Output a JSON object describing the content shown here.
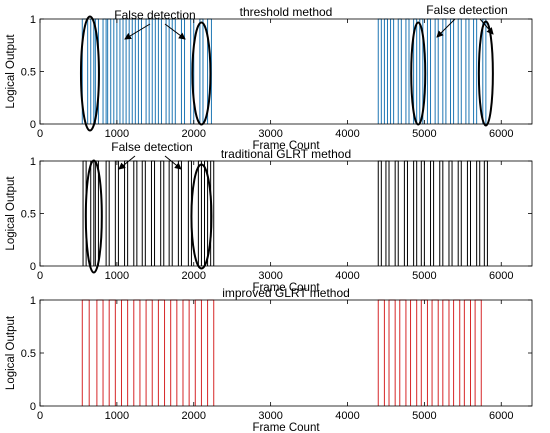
{
  "chart_data": [
    {
      "type": "line",
      "title": "threshold method",
      "xlabel": "Frame Count",
      "ylabel": "Logical Output",
      "xlim": [
        0,
        6400
      ],
      "ylim": [
        0,
        1
      ],
      "xticks": [
        0,
        1000,
        2000,
        3000,
        4000,
        5000,
        6000
      ],
      "yticks": [
        0,
        0.5,
        1
      ],
      "line_color": "#1f77b4",
      "pulses": [
        [
          550,
          620
        ],
        [
          660,
          700
        ],
        [
          720,
          760
        ],
        [
          820,
          860
        ],
        [
          880,
          920
        ],
        [
          960,
          1000
        ],
        [
          1040,
          1080
        ],
        [
          1120,
          1160
        ],
        [
          1200,
          1240
        ],
        [
          1280,
          1320
        ],
        [
          1380,
          1420
        ],
        [
          1460,
          1500
        ],
        [
          1540,
          1580
        ],
        [
          1640,
          1680
        ],
        [
          1720,
          1760
        ],
        [
          1840,
          1880
        ],
        [
          1960,
          2000
        ],
        [
          2080,
          2120
        ],
        [
          2180,
          2230
        ],
        [
          4400,
          4440
        ],
        [
          4480,
          4520
        ],
        [
          4560,
          4600
        ],
        [
          4660,
          4700
        ],
        [
          4760,
          4800
        ],
        [
          4860,
          4900
        ],
        [
          4940,
          4980
        ],
        [
          5040,
          5080
        ],
        [
          5140,
          5180
        ],
        [
          5240,
          5280
        ],
        [
          5340,
          5380
        ],
        [
          5440,
          5480
        ],
        [
          5540,
          5580
        ],
        [
          5640,
          5680
        ],
        [
          5760,
          5800
        ]
      ],
      "annotations": [
        {
          "text": "False detection"
        },
        {
          "text": "False detection"
        }
      ]
    },
    {
      "type": "line",
      "title": "traditional GLRT method",
      "xlabel": "Frame Count",
      "ylabel": "Logical Output",
      "xlim": [
        0,
        6400
      ],
      "ylim": [
        0,
        1
      ],
      "xticks": [
        0,
        1000,
        2000,
        3000,
        4000,
        5000,
        6000
      ],
      "yticks": [
        0,
        0.5,
        1
      ],
      "line_color": "#000000",
      "pulses": [
        [
          560,
          600
        ],
        [
          660,
          700
        ],
        [
          720,
          760
        ],
        [
          860,
          900
        ],
        [
          980,
          1020
        ],
        [
          1100,
          1140
        ],
        [
          1220,
          1260
        ],
        [
          1330,
          1370
        ],
        [
          1450,
          1490
        ],
        [
          1570,
          1610
        ],
        [
          1680,
          1720
        ],
        [
          1800,
          1840
        ],
        [
          1930,
          1970
        ],
        [
          2060,
          2100
        ],
        [
          2140,
          2180
        ],
        [
          2220,
          2260
        ],
        [
          4400,
          4440
        ],
        [
          4500,
          4540
        ],
        [
          4620,
          4660
        ],
        [
          4740,
          4780
        ],
        [
          4860,
          4900
        ],
        [
          4960,
          5000
        ],
        [
          5080,
          5120
        ],
        [
          5200,
          5240
        ],
        [
          5320,
          5360
        ],
        [
          5440,
          5480
        ],
        [
          5560,
          5600
        ],
        [
          5680,
          5720
        ],
        [
          5780,
          5820
        ]
      ],
      "annotations": [
        {
          "text": "False detection"
        }
      ]
    },
    {
      "type": "line",
      "title": "improved GLRT method",
      "xlabel": "Frame Count",
      "ylabel": "Logical Output",
      "xlim": [
        0,
        6400
      ],
      "ylim": [
        0,
        1
      ],
      "xticks": [
        0,
        1000,
        2000,
        3000,
        4000,
        5000,
        6000
      ],
      "yticks": [
        0,
        0.5,
        1
      ],
      "line_color": "#d62728",
      "pulses": [
        [
          550,
          640
        ],
        [
          740,
          820
        ],
        [
          900,
          980
        ],
        [
          1060,
          1140
        ],
        [
          1220,
          1300
        ],
        [
          1380,
          1460
        ],
        [
          1540,
          1620
        ],
        [
          1700,
          1780
        ],
        [
          1860,
          1940
        ],
        [
          2020,
          2100
        ],
        [
          2180,
          2260
        ],
        [
          4400,
          4480
        ],
        [
          4540,
          4620
        ],
        [
          4680,
          4760
        ],
        [
          4820,
          4900
        ],
        [
          4960,
          5040
        ],
        [
          5100,
          5180
        ],
        [
          5240,
          5320
        ],
        [
          5380,
          5460
        ],
        [
          5520,
          5600
        ],
        [
          5660,
          5740
        ]
      ],
      "annotations": []
    }
  ]
}
